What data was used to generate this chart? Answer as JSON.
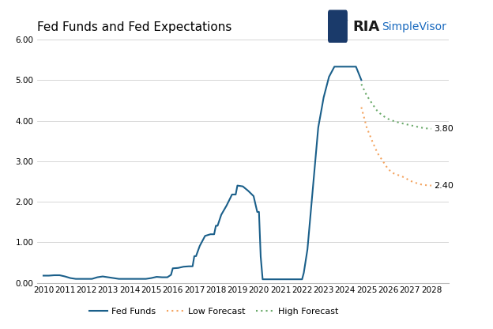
{
  "title": "Fed Funds and Fed Expectations",
  "background_color": "#ffffff",
  "grid_color": "#d0d0d0",
  "ylim": [
    0,
    6.0
  ],
  "yticks": [
    0.0,
    1.0,
    2.0,
    3.0,
    4.0,
    5.0,
    6.0
  ],
  "xlim": [
    2009.7,
    2028.8
  ],
  "xticks": [
    2010,
    2011,
    2012,
    2013,
    2014,
    2015,
    2016,
    2017,
    2018,
    2019,
    2020,
    2021,
    2022,
    2023,
    2024,
    2025,
    2026,
    2027,
    2028
  ],
  "fed_funds_x": [
    2010.0,
    2010.08,
    2010.25,
    2010.5,
    2010.75,
    2011.0,
    2011.25,
    2011.5,
    2011.75,
    2012.0,
    2012.25,
    2012.5,
    2012.75,
    2013.0,
    2013.25,
    2013.5,
    2013.75,
    2014.0,
    2014.25,
    2014.5,
    2014.75,
    2015.0,
    2015.25,
    2015.5,
    2015.75,
    2015.92,
    2016.0,
    2016.25,
    2016.5,
    2016.75,
    2016.92,
    2017.0,
    2017.08,
    2017.25,
    2017.5,
    2017.75,
    2017.92,
    2018.0,
    2018.08,
    2018.25,
    2018.5,
    2018.75,
    2018.92,
    2019.0,
    2019.25,
    2019.5,
    2019.75,
    2019.92,
    2020.0,
    2020.08,
    2020.17,
    2020.25,
    2020.5,
    2020.75,
    2021.0,
    2021.25,
    2021.5,
    2021.75,
    2021.92,
    2022.0,
    2022.08,
    2022.25,
    2022.5,
    2022.75,
    2022.92,
    2023.0,
    2023.25,
    2023.5,
    2023.75,
    2024.0,
    2024.25,
    2024.5,
    2024.75
  ],
  "fed_funds_y": [
    0.18,
    0.18,
    0.18,
    0.19,
    0.19,
    0.16,
    0.12,
    0.1,
    0.1,
    0.1,
    0.1,
    0.14,
    0.16,
    0.14,
    0.12,
    0.1,
    0.1,
    0.1,
    0.1,
    0.1,
    0.1,
    0.12,
    0.15,
    0.14,
    0.14,
    0.2,
    0.36,
    0.37,
    0.4,
    0.41,
    0.41,
    0.66,
    0.66,
    0.91,
    1.16,
    1.2,
    1.2,
    1.41,
    1.41,
    1.68,
    1.91,
    2.18,
    2.18,
    2.4,
    2.38,
    2.27,
    2.14,
    1.75,
    1.75,
    0.65,
    0.09,
    0.09,
    0.09,
    0.09,
    0.09,
    0.09,
    0.09,
    0.09,
    0.09,
    0.09,
    0.25,
    0.83,
    2.33,
    3.83,
    4.33,
    4.57,
    5.08,
    5.33,
    5.33,
    5.33,
    5.33,
    5.33,
    5.0
  ],
  "low_forecast_x": [
    2024.75,
    2025.0,
    2025.25,
    2025.5,
    2025.75,
    2026.0,
    2026.25,
    2026.5,
    2026.75,
    2027.0,
    2027.25,
    2027.5,
    2027.75,
    2028.0
  ],
  "low_forecast_y": [
    4.33,
    3.83,
    3.5,
    3.2,
    3.0,
    2.8,
    2.7,
    2.65,
    2.6,
    2.52,
    2.47,
    2.43,
    2.41,
    2.4
  ],
  "high_forecast_x": [
    2024.75,
    2025.0,
    2025.25,
    2025.5,
    2025.75,
    2026.0,
    2026.25,
    2026.5,
    2026.75,
    2027.0,
    2027.25,
    2027.5,
    2027.75,
    2028.0
  ],
  "high_forecast_y": [
    4.9,
    4.62,
    4.42,
    4.23,
    4.12,
    4.04,
    3.99,
    3.95,
    3.92,
    3.89,
    3.86,
    3.83,
    3.81,
    3.8
  ],
  "ff_color": "#1a5f8a",
  "low_color": "#f4a460",
  "high_color": "#6aaa6a",
  "ff_label": "Fed Funds",
  "low_label": "Low Forecast",
  "high_label": "High Forecast",
  "low_end_label": "2.40",
  "high_end_label": "3.80",
  "title_fontsize": 11,
  "tick_fontsize": 7.5,
  "legend_fontsize": 8,
  "annotation_fontsize": 8
}
